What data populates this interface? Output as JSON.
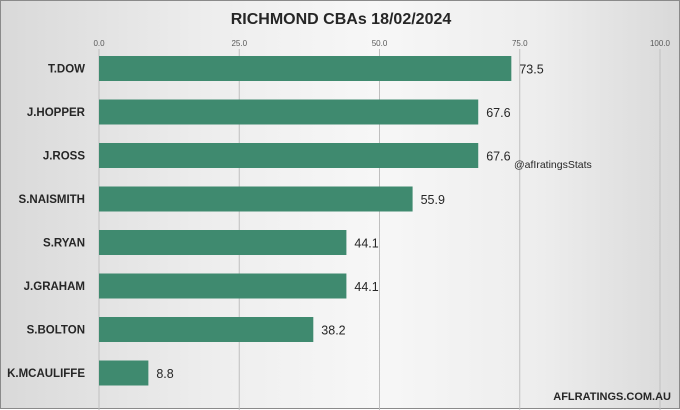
{
  "chart_data": {
    "type": "bar",
    "orientation": "horizontal",
    "title": "RICHMOND CBAs 18/02/2024",
    "categories": [
      "T.DOW",
      "J.HOPPER",
      "J.ROSS",
      "S.NAISMITH",
      "S.RYAN",
      "J.GRAHAM",
      "S.BOLTON",
      "K.MCAULIFFE"
    ],
    "values": [
      73.5,
      67.6,
      67.6,
      55.9,
      44.1,
      44.1,
      38.2,
      8.8
    ],
    "value_labels": [
      "73.5",
      "67.6",
      "67.6",
      "55.9",
      "44.1",
      "44.1",
      "38.2",
      "8.8"
    ],
    "xlim": [
      0,
      100
    ],
    "ticks": [
      0,
      25,
      50,
      75,
      100
    ],
    "tick_labels": [
      "0.0",
      "25.0",
      "50.0",
      "75.0",
      "100.0"
    ],
    "grid": true,
    "axis_position": "top",
    "bar_color": "#3f8a6f",
    "annotation": "@afIratingsStats",
    "watermark": "AFLRATINGS.COM.AU"
  }
}
